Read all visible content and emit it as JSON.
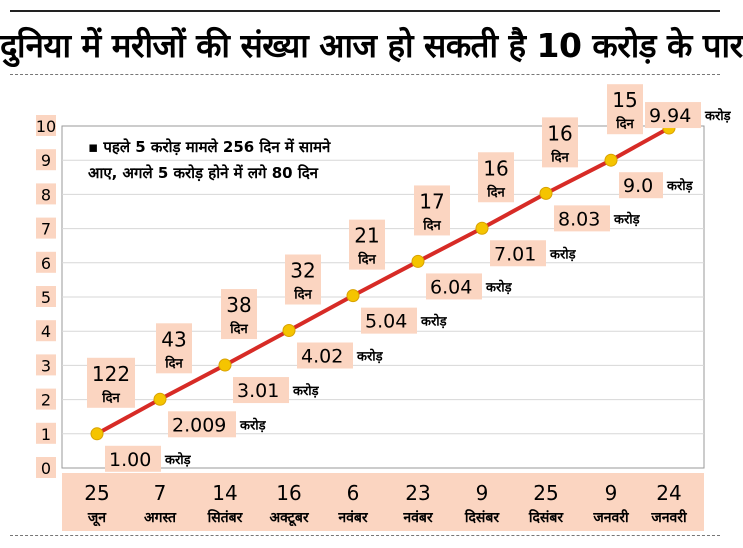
{
  "headline": "दुनिया में मरीजों की संख्या आज हो सकती है 10 करोड़ के पार",
  "colors": {
    "line": "#d72b26",
    "point": "#f5c400",
    "label_bg": "#fbd5c1",
    "grid": "#d7d7d7"
  },
  "chart_data": {
    "type": "line",
    "title": "दुनिया में मरीजों की संख्या आज हो सकती है 10 करोड़ के पार",
    "xlabel": "",
    "ylabel": "",
    "ylim": [
      0,
      10
    ],
    "yticks": [
      "0",
      "1",
      "2",
      "3",
      "4",
      "5",
      "6",
      "7",
      "8",
      "9",
      "10"
    ],
    "grid": true,
    "annotation": [
      "▪ पहले 5 करोड़ मामले 256 दिन में सामने",
      "आए, अगले 5 करोड़ होने में लगे 80 दिन"
    ],
    "unit": "करोड़",
    "days_unit": "दिन",
    "points": [
      {
        "date_day": "25",
        "date_month": "जून",
        "value": 1.0,
        "value_label": "1.00",
        "days": "122"
      },
      {
        "date_day": "7",
        "date_month": "अगस्त",
        "value": 2.009,
        "value_label": "2.009",
        "days": "43"
      },
      {
        "date_day": "14",
        "date_month": "सितंबर",
        "value": 3.01,
        "value_label": "3.01",
        "days": "38"
      },
      {
        "date_day": "16",
        "date_month": "अक्टूबर",
        "value": 4.02,
        "value_label": "4.02",
        "days": "32"
      },
      {
        "date_day": "6",
        "date_month": "नवंबर",
        "value": 5.04,
        "value_label": "5.04",
        "days": "21"
      },
      {
        "date_day": "23",
        "date_month": "नवंबर",
        "value": 6.04,
        "value_label": "6.04",
        "days": "17"
      },
      {
        "date_day": "9",
        "date_month": "दिसंबर",
        "value": 7.01,
        "value_label": "7.01",
        "days": "16"
      },
      {
        "date_day": "25",
        "date_month": "दिसंबर",
        "value": 8.03,
        "value_label": "8.03",
        "days": "16"
      },
      {
        "date_day": "9",
        "date_month": "जनवरी",
        "value": 9.0,
        "value_label": "9.0",
        "days": "15"
      },
      {
        "date_day": "24",
        "date_month": "जनवरी",
        "value": 9.94,
        "value_label": "9.94",
        "days": ""
      }
    ]
  }
}
